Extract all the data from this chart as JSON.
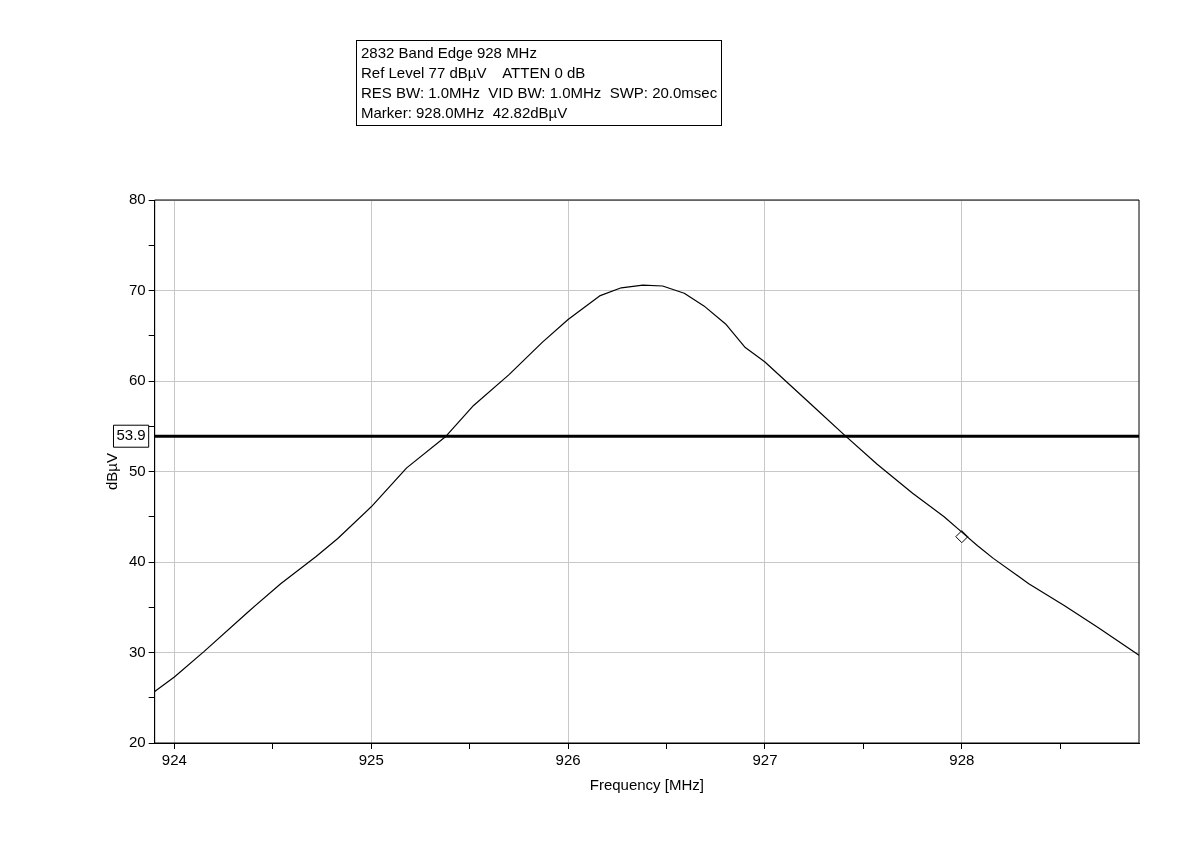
{
  "chart_data": {
    "type": "line",
    "title": "2832 Band Edge 928 MHz",
    "annotations": [
      "Ref Level 77 dBµV    ATTEN 0 dB",
      "RES BW: 1.0MHz  VID BW: 1.0MHz  SWP: 20.0msec",
      "Marker: 928.0MHz  42.82dBµV"
    ],
    "xlabel": "Frequency [MHz]",
    "ylabel": "dBµV",
    "xlim": [
      923.9,
      928.9
    ],
    "ylim": [
      20,
      80
    ],
    "xticks": [
      924,
      {
        "value": 924.5,
        "label": null
      },
      925,
      {
        "value": 925.5,
        "label": null
      },
      926,
      {
        "value": 926.5,
        "label": null
      },
      927,
      {
        "value": 927.5,
        "label": null
      },
      928,
      {
        "value": 928.5,
        "label": null
      }
    ],
    "yticks": [
      20,
      {
        "value": 25,
        "label": null
      },
      30,
      {
        "value": 35,
        "label": null
      },
      40,
      {
        "value": 45,
        "label": null
      },
      50,
      {
        "value": 55,
        "label": null
      },
      60,
      {
        "value": 65,
        "label": null
      },
      70,
      {
        "value": 75,
        "label": null
      },
      80
    ],
    "grid": true,
    "series": [
      {
        "type": "line",
        "color": "#000000",
        "marker": "none",
        "x": [
          923.9,
          924.0,
          924.15,
          924.37,
          924.54,
          924.72,
          924.83,
          925.0,
          925.18,
          925.38,
          925.52,
          925.7,
          925.87,
          926.0,
          926.08,
          926.16,
          926.27,
          926.38,
          926.48,
          926.59,
          926.69,
          926.8,
          926.9,
          927.0,
          927.13,
          927.26,
          927.4,
          927.57,
          927.75,
          927.91,
          928.0,
          928.08,
          928.16,
          928.34,
          928.52,
          928.69,
          928.9
        ],
        "values": [
          25.7,
          27.3,
          30.1,
          34.4,
          37.6,
          40.6,
          42.6,
          46.1,
          50.4,
          53.9,
          57.3,
          60.7,
          64.3,
          66.8,
          68.1,
          69.4,
          70.3,
          70.6,
          70.5,
          69.7,
          68.3,
          66.3,
          63.7,
          62.1,
          59.5,
          56.9,
          54.1,
          50.8,
          47.6,
          45.0,
          43.3,
          41.8,
          40.4,
          37.6,
          35.2,
          32.8,
          29.7
        ]
      },
      {
        "type": "scatter",
        "color": "#000000",
        "marker": "diamond",
        "x": [
          928.0
        ],
        "values": [
          42.8
        ]
      }
    ],
    "ref_lines": [
      {
        "axis": "y",
        "value": 53.9,
        "label": "53.9",
        "color": "#000000"
      }
    ]
  }
}
